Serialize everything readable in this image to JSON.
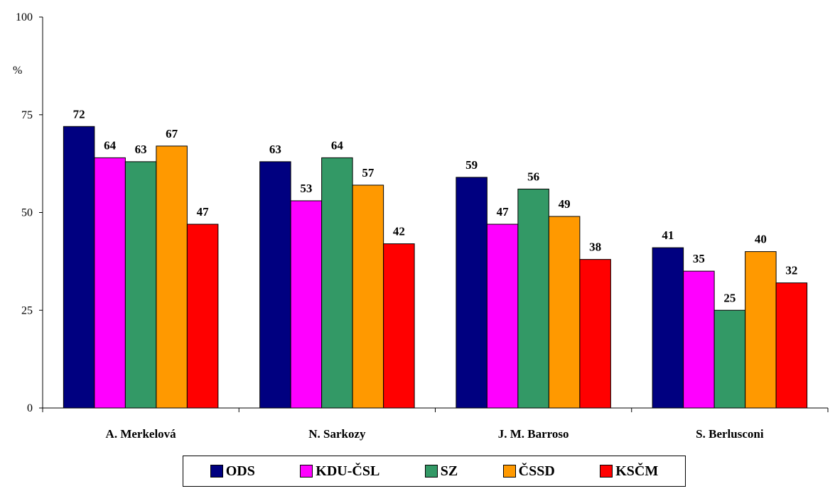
{
  "chart_data": {
    "type": "bar",
    "ylabel": "%",
    "ylim": [
      0,
      100
    ],
    "yticks": [
      "0",
      "25",
      "50",
      "75",
      "100"
    ],
    "grid": false,
    "legend_placement": "bottom",
    "categories": [
      "A. Merkelová",
      "N. Sarkozy",
      "J. M. Barroso",
      "S. Berlusconi"
    ],
    "series": [
      {
        "name": "ODS",
        "color": "#000080",
        "values": [
          72,
          63,
          59,
          41
        ]
      },
      {
        "name": "KDU-ČSL",
        "color": "#ff00ff",
        "values": [
          64,
          53,
          47,
          35
        ]
      },
      {
        "name": "SZ",
        "color": "#339966",
        "values": [
          63,
          64,
          56,
          25
        ]
      },
      {
        "name": "ČSSD",
        "color": "#ff9900",
        "values": [
          67,
          57,
          49,
          40
        ]
      },
      {
        "name": "KSČM",
        "color": "#ff0000",
        "values": [
          47,
          42,
          38,
          32
        ]
      }
    ]
  }
}
